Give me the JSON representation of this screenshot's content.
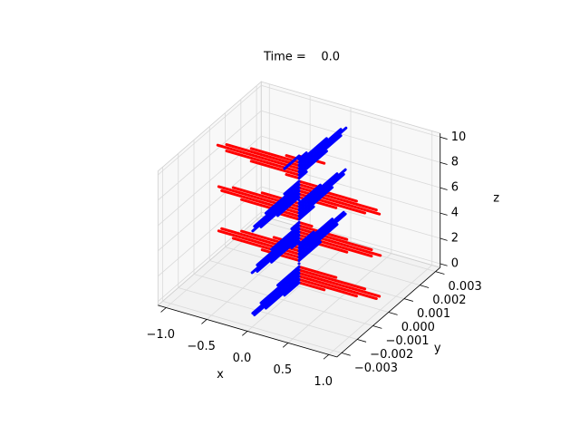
{
  "chart_data": {
    "type": "quiver3d",
    "title": "Time =    0.0",
    "x_label": "x",
    "y_label": "y",
    "z_label": "z",
    "z": [
      0,
      0.25,
      0.5,
      0.75,
      1,
      1.25,
      1.5,
      1.75,
      2,
      2.25,
      2.5,
      2.75,
      3,
      3.25,
      3.5,
      3.75,
      4,
      4.25,
      4.5,
      4.75,
      5,
      5.25,
      5.5,
      5.75,
      6,
      6.25,
      6.5,
      6.75,
      7,
      7.25,
      7.5,
      7.75,
      8,
      8.25,
      8.5,
      8.75,
      9,
      9.25,
      9.5,
      9.75,
      10
    ],
    "series": [
      {
        "color": "red",
        "direction": "x",
        "values": [
          0.309,
          0.707,
          0.951,
          0.988,
          0.809,
          0.454,
          0,
          -0.454,
          -0.809,
          -0.988,
          -0.951,
          -0.707,
          -0.309,
          0.156,
          0.588,
          0.891,
          1,
          0.891,
          0.588,
          0.156,
          -0.309,
          -0.707,
          -0.951,
          -0.988,
          -0.809,
          -0.454,
          0,
          0.454,
          0.809,
          0.988,
          0.951,
          0.707,
          0.309,
          -0.156,
          -0.588,
          -0.891,
          -1,
          -0.891,
          -0.588,
          -0.156,
          0.309
        ]
      },
      {
        "color": "blue",
        "direction": "y",
        "values": [
          -0.00093,
          -0.00212,
          -0.00285,
          -0.00296,
          -0.00243,
          -0.00136,
          0,
          0.00136,
          0.00243,
          0.00296,
          0.00285,
          0.00212,
          0.00093,
          -0.00047,
          -0.00176,
          -0.00267,
          -0.003,
          -0.00267,
          -0.00176,
          -0.00047,
          0.00093,
          0.00212,
          0.00285,
          0.00296,
          0.00243,
          0.00136,
          0,
          -0.00136,
          -0.00243,
          -0.00296,
          -0.00285,
          -0.00212,
          -0.00093,
          0.00047,
          0.00176,
          0.00267,
          0.003,
          0.00267,
          0.00176,
          0.00047,
          -0.00093
        ]
      }
    ],
    "xlim": [
      -1.1,
      1.1
    ],
    "xticks": [
      {
        "value": -1,
        "label": "−1.0"
      },
      {
        "value": -0.5,
        "label": "−0.5"
      },
      {
        "value": 0,
        "label": "0.0"
      },
      {
        "value": 0.5,
        "label": "0.5"
      },
      {
        "value": 1,
        "label": "1.0"
      }
    ],
    "ylim": [
      -0.0033,
      0.0033
    ],
    "yticks": [
      {
        "value": -0.003,
        "label": "−0.003"
      },
      {
        "value": -0.002,
        "label": "−0.002"
      },
      {
        "value": -0.001,
        "label": "−0.001"
      },
      {
        "value": 0,
        "label": "0.000"
      },
      {
        "value": 0.001,
        "label": "0.001"
      },
      {
        "value": 0.002,
        "label": "0.002"
      },
      {
        "value": 0.003,
        "label": "0.003"
      }
    ],
    "zlim": [
      -0.3,
      10.3
    ],
    "zticks": [
      0,
      2,
      4,
      6,
      8,
      10
    ],
    "grid": true
  }
}
